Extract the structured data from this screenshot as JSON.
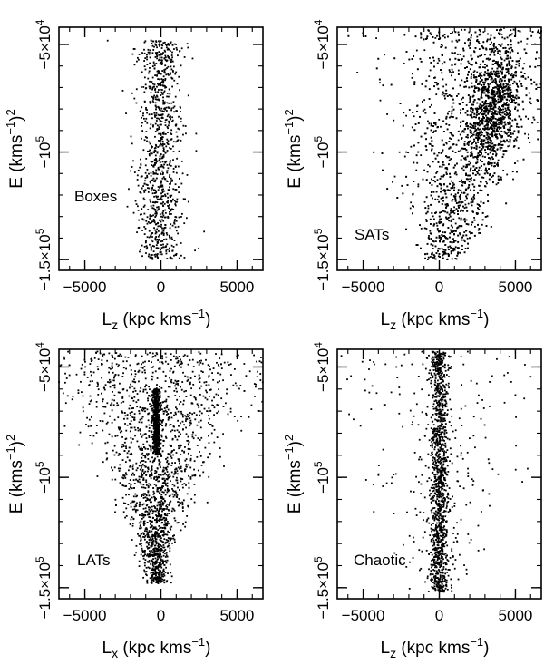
{
  "colors": {
    "points": "#000000",
    "axes": "#000000",
    "background": "#ffffff"
  },
  "chart_data": [
    {
      "type": "scatter",
      "panel_label": "Boxes",
      "xlabel": {
        "main": "L",
        "sub": "z",
        "rest": " (kpc kms",
        "sup": "−1",
        "close": ")"
      },
      "ylabel": {
        "main": "E  (kms",
        "sup1": "−1",
        "close": ")",
        "sup2": "2"
      },
      "xlim": [
        -6700,
        6700
      ],
      "ylim": [
        -155000,
        -42000
      ],
      "x_ticks": [
        {
          "value": -5000,
          "label": "−5000"
        },
        {
          "value": 0,
          "label": "0"
        },
        {
          "value": 5000,
          "label": "5000"
        }
      ],
      "y_ticks": [
        {
          "value": -50000,
          "label": "−5×10",
          "exp": "4"
        },
        {
          "value": -100000,
          "label": "−10",
          "exp": "5"
        },
        {
          "value": -150000,
          "label": "−1.5×10",
          "exp": "5"
        }
      ],
      "x_minor_step": 1000,
      "y_minor_step": 10000,
      "series": [
        {
          "count": 1000,
          "x_center": -50,
          "x_spread": 1300,
          "y_min": -150000,
          "y_max": -48000,
          "shape": "vertical-band"
        }
      ]
    },
    {
      "type": "scatter",
      "panel_label": "SATs",
      "xlabel": {
        "main": "L",
        "sub": "z",
        "rest": " (kpc kms",
        "sup": "−1",
        "close": ")"
      },
      "ylabel": {
        "main": "E  (kms",
        "sup1": "−1",
        "close": ")",
        "sup2": "2"
      },
      "xlim": [
        -6700,
        6700
      ],
      "ylim": [
        -155000,
        -42000
      ],
      "x_ticks": [
        {
          "value": -5000,
          "label": "−5000"
        },
        {
          "value": 0,
          "label": "0"
        },
        {
          "value": 5000,
          "label": "5000"
        }
      ],
      "y_ticks": [
        {
          "value": -50000,
          "label": "−5×10",
          "exp": "4"
        },
        {
          "value": -100000,
          "label": "−10",
          "exp": "5"
        },
        {
          "value": -150000,
          "label": "−1.5×10",
          "exp": "5"
        }
      ],
      "x_minor_step": 1000,
      "y_minor_step": 10000,
      "series": [
        {
          "count": 3600,
          "x_center": 2600,
          "x_spread": 3200,
          "y_min": -150000,
          "y_max": -43000,
          "shape": "wedge-right",
          "dense_center": [
            3500,
            -80000
          ]
        }
      ]
    },
    {
      "type": "scatter",
      "panel_label": "LATs",
      "xlabel": {
        "main": "L",
        "sub": "x",
        "rest": " (kpc kms",
        "sup": "−1",
        "close": ")"
      },
      "ylabel": {
        "main": "E  (kms",
        "sup1": "−1",
        "close": ")",
        "sup2": "2"
      },
      "xlim": [
        -6700,
        6700
      ],
      "ylim": [
        -155000,
        -42000
      ],
      "x_ticks": [
        {
          "value": -5000,
          "label": "−5000"
        },
        {
          "value": 0,
          "label": "0"
        },
        {
          "value": 5000,
          "label": "5000"
        }
      ],
      "y_ticks": [
        {
          "value": -50000,
          "label": "−5×10",
          "exp": "4"
        },
        {
          "value": -100000,
          "label": "−10",
          "exp": "5"
        },
        {
          "value": -150000,
          "label": "−1.5×10",
          "exp": "5"
        }
      ],
      "x_minor_step": 1000,
      "y_minor_step": 10000,
      "series": [
        {
          "count": 2600,
          "x_center": -300,
          "x_spread": 6500,
          "y_min": -148000,
          "y_max": -43000,
          "shape": "fan-down",
          "dense_ridge_x": -300
        }
      ]
    },
    {
      "type": "scatter",
      "panel_label": "Chaotic",
      "xlabel": {
        "main": "L",
        "sub": "z",
        "rest": " (kpc kms",
        "sup": "−1",
        "close": ")"
      },
      "ylabel": {
        "main": "E  (kms",
        "sup1": "−1",
        "close": ")",
        "sup2": "2"
      },
      "xlim": [
        -6700,
        6700
      ],
      "ylim": [
        -155000,
        -42000
      ],
      "x_ticks": [
        {
          "value": -5000,
          "label": "−5000"
        },
        {
          "value": 0,
          "label": "0"
        },
        {
          "value": 5000,
          "label": "5000"
        }
      ],
      "y_ticks": [
        {
          "value": -50000,
          "label": "−5×10",
          "exp": "4"
        },
        {
          "value": -100000,
          "label": "−10",
          "exp": "5"
        },
        {
          "value": -150000,
          "label": "−1.5×10",
          "exp": "5"
        }
      ],
      "x_minor_step": 1000,
      "y_minor_step": 10000,
      "series": [
        {
          "count": 1500,
          "x_center": 0,
          "x_spread": 900,
          "y_min": -152000,
          "y_max": -43000,
          "shape": "narrow-band-with-wings"
        }
      ]
    }
  ]
}
